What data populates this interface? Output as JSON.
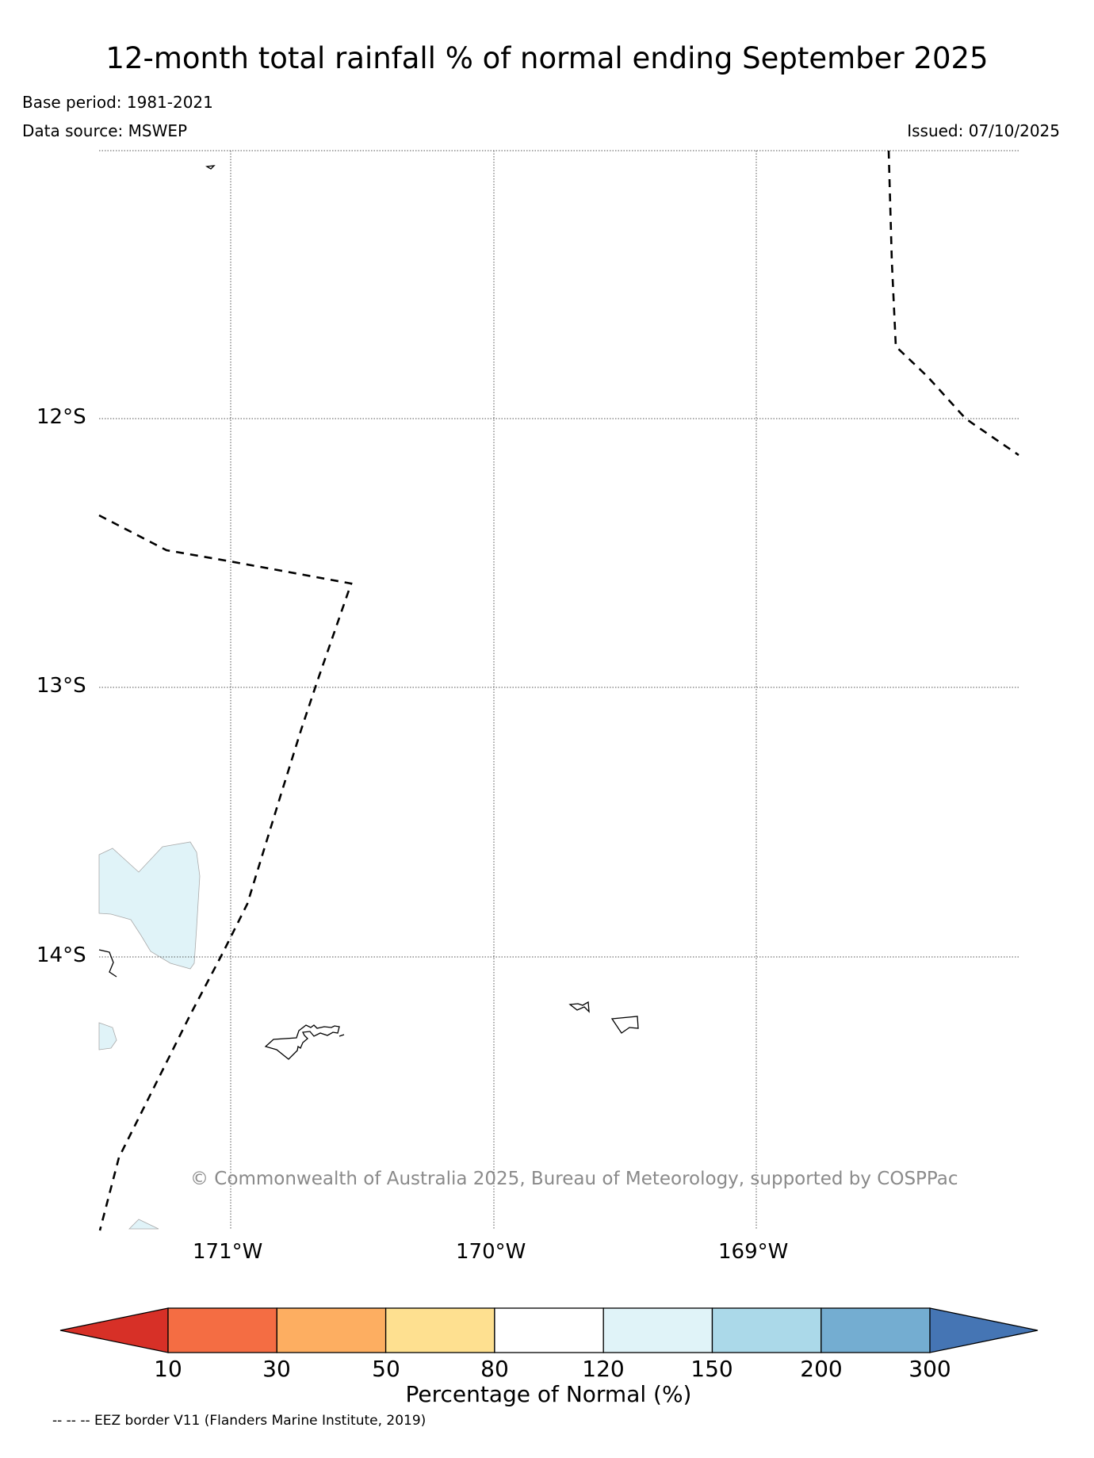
{
  "title": "12-month total rainfall % of normal ending September 2025",
  "meta": {
    "base_period": "Base period: 1981-2021",
    "data_source": "Data source: MSWEP",
    "issued": "Issued: 07/10/2025"
  },
  "map": {
    "lat_labels": [
      "12°S",
      "13°S",
      "14°S"
    ],
    "lon_labels": [
      "171°W",
      "170°W",
      "169°W"
    ],
    "copyright": "© Commonwealth of Australia 2025, Bureau of Meteorology, supported by COSPPac"
  },
  "colorbar": {
    "tick_labels": [
      "10",
      "30",
      "50",
      "80",
      "120",
      "150",
      "200",
      "300"
    ],
    "label": "Percentage of Normal (%)",
    "colors": [
      "#d73027",
      "#f46d43",
      "#fdae61",
      "#fee090",
      "#ffffff",
      "#e0f3f8",
      "#abd9e9",
      "#74add1",
      "#4575b4"
    ]
  },
  "legend": {
    "eez": "-- -- -- EEZ border V11 (Flanders Marine Institute, 2019)"
  }
}
